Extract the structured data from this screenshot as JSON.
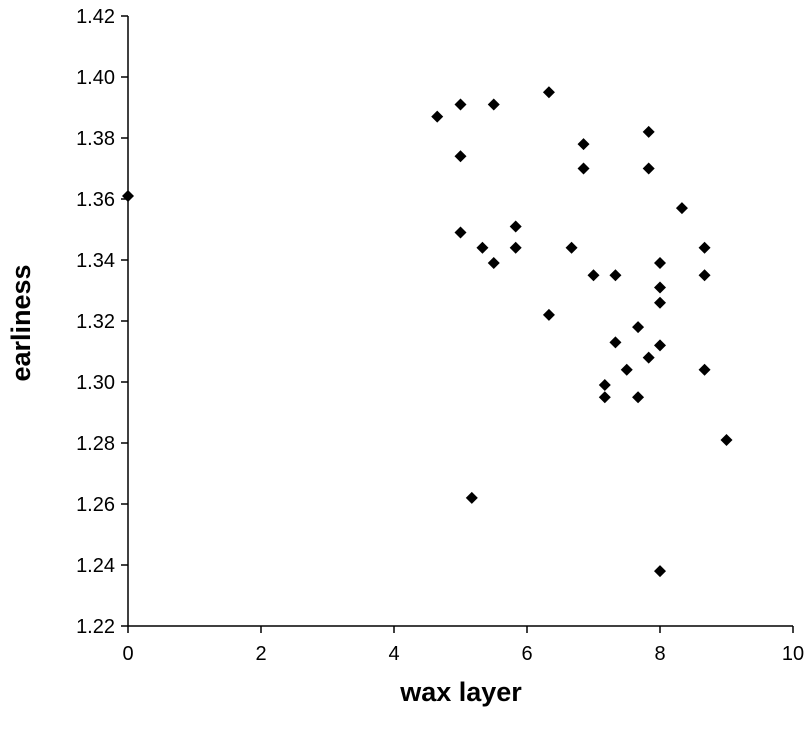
{
  "chart_data": {
    "type": "scatter",
    "title": "",
    "xlabel": "wax layer",
    "ylabel": "earliness",
    "xlim": [
      0,
      10
    ],
    "ylim": [
      1.22,
      1.42
    ],
    "x_ticks": [
      "0",
      "2",
      "4",
      "6",
      "8",
      "10"
    ],
    "y_ticks": [
      "1.22",
      "1.24",
      "1.26",
      "1.28",
      "1.30",
      "1.32",
      "1.34",
      "1.36",
      "1.38",
      "1.40",
      "1.42"
    ],
    "grid": false,
    "legend": "none",
    "marker": "diamond",
    "marker_color": "#000000",
    "points": [
      {
        "x": 0,
        "y": 1.361
      },
      {
        "x": 4.65,
        "y": 1.387
      },
      {
        "x": 5.0,
        "y": 1.391
      },
      {
        "x": 5.5,
        "y": 1.391
      },
      {
        "x": 6.33,
        "y": 1.395
      },
      {
        "x": 5.0,
        "y": 1.374
      },
      {
        "x": 6.85,
        "y": 1.378
      },
      {
        "x": 7.83,
        "y": 1.382
      },
      {
        "x": 6.85,
        "y": 1.37
      },
      {
        "x": 7.83,
        "y": 1.37
      },
      {
        "x": 8.33,
        "y": 1.357
      },
      {
        "x": 5.83,
        "y": 1.351
      },
      {
        "x": 5.0,
        "y": 1.349
      },
      {
        "x": 5.33,
        "y": 1.344
      },
      {
        "x": 5.83,
        "y": 1.344
      },
      {
        "x": 6.67,
        "y": 1.344
      },
      {
        "x": 8.67,
        "y": 1.344
      },
      {
        "x": 5.5,
        "y": 1.339
      },
      {
        "x": 8.0,
        "y": 1.339
      },
      {
        "x": 7.0,
        "y": 1.335
      },
      {
        "x": 7.33,
        "y": 1.335
      },
      {
        "x": 8.67,
        "y": 1.335
      },
      {
        "x": 8.0,
        "y": 1.331
      },
      {
        "x": 8.0,
        "y": 1.326
      },
      {
        "x": 6.33,
        "y": 1.322
      },
      {
        "x": 7.67,
        "y": 1.318
      },
      {
        "x": 7.33,
        "y": 1.313
      },
      {
        "x": 8.0,
        "y": 1.312
      },
      {
        "x": 7.83,
        "y": 1.308
      },
      {
        "x": 7.5,
        "y": 1.304
      },
      {
        "x": 8.67,
        "y": 1.304
      },
      {
        "x": 7.17,
        "y": 1.299
      },
      {
        "x": 7.17,
        "y": 1.295
      },
      {
        "x": 7.67,
        "y": 1.295
      },
      {
        "x": 9.0,
        "y": 1.281
      },
      {
        "x": 5.17,
        "y": 1.262
      },
      {
        "x": 8.0,
        "y": 1.238
      }
    ]
  }
}
